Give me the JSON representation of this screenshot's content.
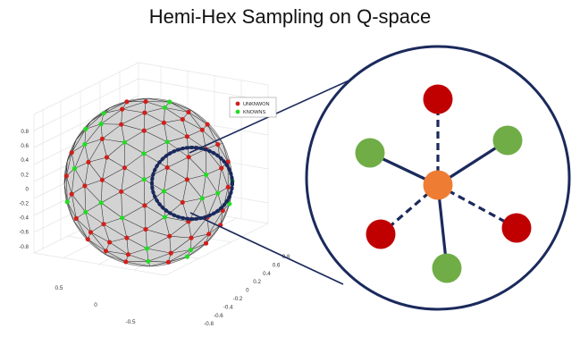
{
  "title": "Hemi-Hex Sampling on Q-space",
  "legend": {
    "unknown_label": "UNKNWON",
    "known_label": "KNOWNS"
  },
  "colors": {
    "unknown": "#d0201c",
    "known": "#22dd22",
    "sphere_fill": "#d3d3d3",
    "highlight_ring": "#1b2a5c",
    "center_node": "#ee7d33",
    "zoom_unknown": "#c00000",
    "zoom_known": "#70ad47"
  },
  "axes": {
    "vertical_ticks": [
      "0.8",
      "0.6",
      "0.4",
      "0.2",
      "0",
      "-0.2",
      "-0.4",
      "-0.6",
      "-0.8"
    ],
    "left_floor_ticks": [
      "0.5",
      "0",
      "-0.5"
    ],
    "right_floor_ticks": [
      "0.8",
      "0.6",
      "0.4",
      "0.2",
      "0",
      "-0.2",
      "-0.4",
      "-0.6",
      "-0.8"
    ]
  },
  "zoom": {
    "center": "orange-center-node",
    "neighbors": [
      {
        "kind": "unknown",
        "link": "dashed",
        "name": "top"
      },
      {
        "kind": "known",
        "link": "solid",
        "name": "upper-right"
      },
      {
        "kind": "unknown",
        "link": "dashed",
        "name": "lower-right"
      },
      {
        "kind": "known",
        "link": "solid",
        "name": "bottom"
      },
      {
        "kind": "unknown",
        "link": "dashed",
        "name": "lower-left"
      },
      {
        "kind": "known",
        "link": "solid",
        "name": "upper-left"
      }
    ]
  }
}
